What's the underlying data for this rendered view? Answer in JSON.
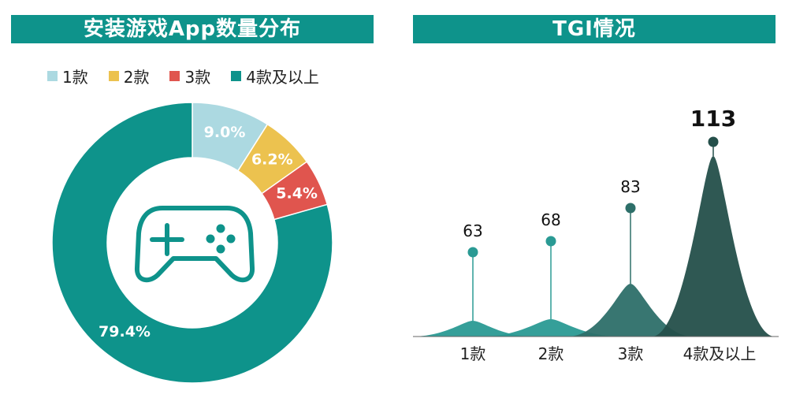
{
  "left_title": "安装游戏App数量分布",
  "right_title": "TGI情况",
  "icon": "gamepad-icon",
  "chart_data": [
    {
      "type": "pie",
      "title": "安装游戏App数量分布",
      "legend_position": "top",
      "categories": [
        "1款",
        "2款",
        "3款",
        "4款及以上"
      ],
      "values": [
        9.0,
        6.2,
        5.4,
        79.4
      ],
      "labels": [
        "9.0%",
        "6.2%",
        "5.4%",
        "79.4%"
      ],
      "colors": [
        "#acd9e1",
        "#ecc24f",
        "#e0554e",
        "#0e938b"
      ]
    },
    {
      "type": "area",
      "title": "TGI情况",
      "categories": [
        "1款",
        "2款",
        "3款",
        "4款及以上"
      ],
      "values": [
        63,
        68,
        83,
        113
      ],
      "labels": [
        "63",
        "68",
        "83",
        "113"
      ],
      "colors": [
        "#2a9a94",
        "#2a9a94",
        "#2d6f69",
        "#244f4a"
      ]
    }
  ]
}
